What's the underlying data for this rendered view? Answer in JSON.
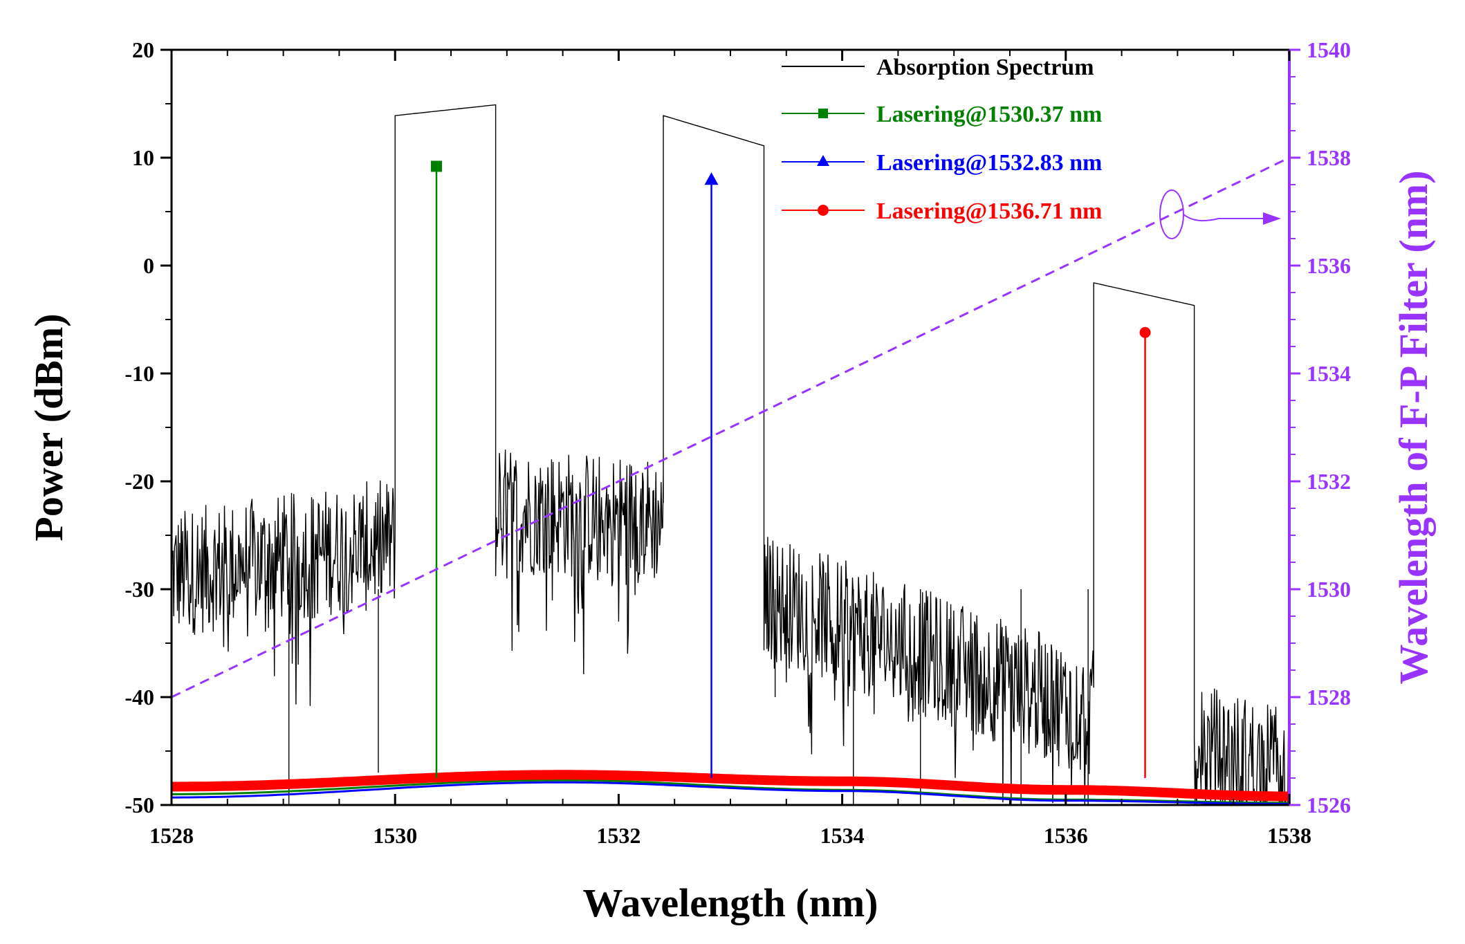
{
  "chart_data": {
    "type": "line",
    "xlabel": "Wavelength (nm)",
    "ylabel": "Power (dBm)",
    "ylabel_right": "Wavelength of F-P Filter (nm)",
    "xlim": [
      1528,
      1538
    ],
    "ylim": [
      -50,
      20
    ],
    "ylim_right": [
      1526,
      1540
    ],
    "x_ticks": [
      1528,
      1530,
      1532,
      1534,
      1536,
      1538
    ],
    "x_tick_labels": [
      "1528",
      "1530",
      "1532",
      "1534",
      "1536",
      "1538"
    ],
    "y_ticks": [
      20,
      10,
      0,
      -10,
      -20,
      -30,
      -40,
      -50
    ],
    "y_tick_labels": [
      "20",
      "10",
      "0",
      "-10",
      "-20",
      "-30",
      "-40",
      "-50"
    ],
    "y_right_ticks": [
      1540,
      1538,
      1536,
      1534,
      1532,
      1530,
      1528,
      1526
    ],
    "y_right_tick_labels": [
      "1540",
      "1538",
      "1536",
      "1534",
      "1532",
      "1530",
      "1528",
      "1526"
    ],
    "legend_position": "top-right",
    "series": [
      {
        "name": "Absorption Spectrum",
        "color": "#000000",
        "axis": "left",
        "noise_bands": [
          {
            "x_start": 1528.0,
            "x_end": 1530.0,
            "base_start": -28,
            "base_end": -25
          },
          {
            "x_start": 1530.9,
            "x_end": 1532.4,
            "base_start": -22,
            "base_end": -23
          },
          {
            "x_start": 1533.3,
            "x_end": 1536.25,
            "base_start": -30,
            "base_end": -41
          },
          {
            "x_start": 1537.15,
            "x_end": 1538.0,
            "base_start": -44,
            "base_end": -46
          }
        ],
        "plateaus": [
          {
            "x_start": 1530.0,
            "x_end": 1530.9,
            "y_start": 13.9,
            "y_end": 14.9,
            "floor_left": -21,
            "floor_right": -25
          },
          {
            "x_start": 1532.4,
            "x_end": 1533.3,
            "y_start": 13.9,
            "y_end": 11.1,
            "floor_left": -22,
            "floor_right": -26
          },
          {
            "x_start": 1536.25,
            "x_end": 1537.15,
            "y_start": -1.6,
            "y_end": -3.7,
            "floor_left": -39,
            "floor_right": -43
          }
        ],
        "dips": [
          {
            "x": 1529.05,
            "y": -50
          },
          {
            "x": 1529.85,
            "y": -47
          },
          {
            "x": 1533.4,
            "y": -40
          },
          {
            "x": 1534.1,
            "y": -50
          },
          {
            "x": 1534.7,
            "y": -50
          },
          {
            "x": 1535.6,
            "y": -50
          },
          {
            "x": 1536.2,
            "y": -50
          }
        ]
      },
      {
        "name": "Lasering@1530.37 nm",
        "color": "#008000",
        "axis": "left",
        "marker": "square",
        "peak_x": 1530.37,
        "peak_y": 9.2,
        "floor": [
          [
            1528,
            -49
          ],
          [
            1531.5,
            -47.7
          ],
          [
            1534,
            -48.6
          ],
          [
            1536,
            -49.5
          ],
          [
            1538,
            -49.8
          ]
        ]
      },
      {
        "name": "Lasering@1532.83 nm",
        "color": "#0000ff",
        "axis": "left",
        "marker": "triangle",
        "peak_x": 1532.83,
        "peak_y": 8.0,
        "floor": [
          [
            1528,
            -49.3
          ],
          [
            1531.5,
            -47.9
          ],
          [
            1534,
            -48.7
          ],
          [
            1536,
            -49.6
          ],
          [
            1538,
            -49.9
          ]
        ]
      },
      {
        "name": "Lasering@1536.71 nm",
        "color": "#ff0000",
        "axis": "left",
        "marker": "circle",
        "peak_x": 1536.71,
        "peak_y": -6.2,
        "floor": [
          [
            1528,
            -48.3
          ],
          [
            1531.5,
            -47.2
          ],
          [
            1534,
            -47.8
          ],
          [
            1536,
            -48.6
          ],
          [
            1538,
            -49.2
          ]
        ]
      },
      {
        "name": "F-P filter wavelength",
        "color": "#9933ff",
        "axis": "right",
        "style": "dashed",
        "x": [
          1528,
          1538
        ],
        "y": [
          1528,
          1538
        ]
      }
    ]
  }
}
